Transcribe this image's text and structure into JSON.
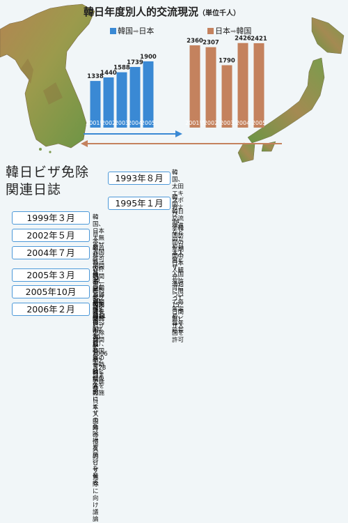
{
  "header": {
    "title": "韓日年度別人的交流現況",
    "unit": "（単位千人）"
  },
  "legend": {
    "korea_to_japan": "韓国",
    "japan_to_korea": "日本",
    "japan_to_korea_from": "日本",
    "japan_to_korea_to": "韓国",
    "korea_to_japan_to": "日本"
  },
  "colors": {
    "korea_to_japan": "#3a89d4",
    "japan_to_korea": "#c4825e",
    "border": "#4c98d8",
    "sea": "#f1f6f8"
  },
  "chart_data": {
    "type": "bar",
    "series": [
      {
        "name": "韓国→日本",
        "categories": [
          "2001년",
          "2002",
          "2003",
          "2004",
          "2005"
        ],
        "values": [
          1338,
          1440,
          1588,
          1739,
          1900
        ]
      },
      {
        "name": "日本→韓国",
        "categories": [
          "2001년",
          "2002",
          "2003",
          "2004",
          "2005"
        ],
        "values": [
          2360,
          2307,
          1790,
          2426,
          2421
        ]
      }
    ],
    "title": "韓日年度別人的交流現況",
    "ylabel": "",
    "xlabel": "",
    "ylim": [
      0,
      2500
    ],
    "grid": false,
    "legend_position": "top"
  },
  "history": {
    "title": "韓日ビザ免除\n関連日誌",
    "events": [
      {
        "date": "1993年８月",
        "text": "韓国、太田エキスポおよび94年韓国訪問の年期間中\n日本人観光、通過に限って15日間無ビザ入国を許可"
      },
      {
        "date": "1995年１月",
        "text": "韓国、韓日交流増進などのため日本人無ビザ\n入国を許可について毎年定め、毎年延長"
      },
      {
        "date": "1999年３月",
        "text": "韓国、日本人無ビザ入国許可期間を15日から30日に延長"
      },
      {
        "date": "2002年５月",
        "text": "日本、韓日サッカーW杯期間中一時的ビザの免除を実施"
      },
      {
        "date": "2004年７月",
        "text": "盧武鉉大統領－小泉首相済州首脳会談で韓国人の日本入国時の恒久的\nビザ免除に向け議論"
      },
      {
        "date": "2005年３月",
        "text": "日本、愛知万博期間（3月11日～9月30日）、韓国人の一時的ビザ免除を実施"
      },
      {
        "date": "2005年10月",
        "text": "日本、韓国人一時的ビザ免除期間を2006年2月28日まで延長"
      },
      {
        "date": "2006年２月",
        "text": "韓日両国3月1日から恒久的にビザの免除措置施行を発表"
      }
    ]
  }
}
